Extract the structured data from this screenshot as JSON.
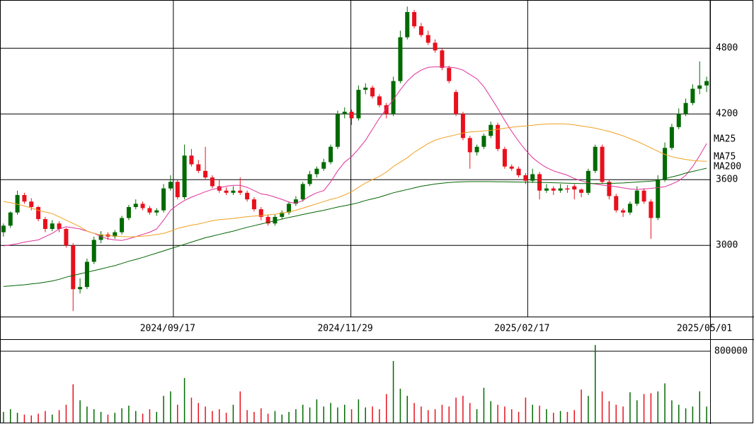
{
  "chart_data": {
    "type": "candlestick",
    "up_color": "#006a00",
    "down_color": "#e8101c",
    "grid": true,
    "ylim": [
      2350,
      5240
    ],
    "yticks": [
      3000,
      3600,
      4200,
      4800
    ],
    "xticks": [
      {
        "value": 24.4,
        "label": "2024/09/17"
      },
      {
        "value": 49.9,
        "label": "2024/11/29"
      },
      {
        "value": 75.3,
        "label": "2025/02/17"
      },
      {
        "value": 101.5,
        "label": "2025/05/01"
      }
    ],
    "ohlc": [
      [
        3120,
        3200,
        3080,
        3180
      ],
      [
        3180,
        3310,
        3160,
        3300
      ],
      [
        3300,
        3500,
        3280,
        3460
      ],
      [
        3460,
        3480,
        3380,
        3400
      ],
      [
        3400,
        3430,
        3320,
        3350
      ],
      [
        3350,
        3360,
        3220,
        3240
      ],
      [
        3240,
        3260,
        3120,
        3150
      ],
      [
        3150,
        3230,
        3130,
        3200
      ],
      [
        3200,
        3220,
        3120,
        3150
      ],
      [
        3150,
        3160,
        2980,
        3000
      ],
      [
        3000,
        3020,
        2400,
        2600
      ],
      [
        2600,
        2700,
        2560,
        2620
      ],
      [
        2620,
        2880,
        2600,
        2850
      ],
      [
        2850,
        3080,
        2830,
        3050
      ],
      [
        3050,
        3130,
        3020,
        3100
      ],
      [
        3100,
        3120,
        3050,
        3080
      ],
      [
        3080,
        3140,
        3060,
        3120
      ],
      [
        3120,
        3270,
        3100,
        3250
      ],
      [
        3250,
        3370,
        3230,
        3350
      ],
      [
        3350,
        3420,
        3330,
        3380
      ],
      [
        3380,
        3400,
        3320,
        3340
      ],
      [
        3340,
        3360,
        3280,
        3300
      ],
      [
        3300,
        3340,
        3270,
        3320
      ],
      [
        3320,
        3560,
        3300,
        3520
      ],
      [
        3520,
        3640,
        3500,
        3580
      ],
      [
        3580,
        3600,
        3420,
        3440
      ],
      [
        3440,
        3920,
        3420,
        3820
      ],
      [
        3820,
        3880,
        3720,
        3740
      ],
      [
        3740,
        3780,
        3660,
        3680
      ],
      [
        3680,
        3900,
        3600,
        3620
      ],
      [
        3620,
        3640,
        3520,
        3540
      ],
      [
        3540,
        3600,
        3480,
        3500
      ],
      [
        3500,
        3530,
        3460,
        3480
      ],
      [
        3480,
        3540,
        3460,
        3500
      ],
      [
        3500,
        3620,
        3460,
        3480
      ],
      [
        3480,
        3500,
        3400,
        3420
      ],
      [
        3420,
        3440,
        3310,
        3330
      ],
      [
        3330,
        3350,
        3230,
        3260
      ],
      [
        3260,
        3280,
        3180,
        3200
      ],
      [
        3200,
        3280,
        3180,
        3260
      ],
      [
        3260,
        3320,
        3240,
        3300
      ],
      [
        3300,
        3400,
        3280,
        3380
      ],
      [
        3380,
        3450,
        3360,
        3420
      ],
      [
        3420,
        3580,
        3400,
        3560
      ],
      [
        3560,
        3680,
        3540,
        3650
      ],
      [
        3650,
        3720,
        3620,
        3700
      ],
      [
        3700,
        3790,
        3680,
        3760
      ],
      [
        3760,
        3920,
        3740,
        3900
      ],
      [
        3900,
        4230,
        3880,
        4200
      ],
      [
        4200,
        4260,
        4160,
        4220
      ],
      [
        4220,
        4240,
        4100,
        4160
      ],
      [
        4160,
        4460,
        4140,
        4420
      ],
      [
        4420,
        4480,
        4380,
        4440
      ],
      [
        4440,
        4460,
        4340,
        4360
      ],
      [
        4360,
        4380,
        4260,
        4280
      ],
      [
        4280,
        4300,
        4160,
        4200
      ],
      [
        4200,
        4540,
        4180,
        4500
      ],
      [
        4500,
        4960,
        4480,
        4900
      ],
      [
        4900,
        5180,
        4880,
        5130
      ],
      [
        5130,
        5150,
        4980,
        5000
      ],
      [
        5000,
        5030,
        4900,
        4920
      ],
      [
        4920,
        4960,
        4830,
        4850
      ],
      [
        4850,
        4880,
        4760,
        4780
      ],
      [
        4780,
        4800,
        4600,
        4620
      ],
      [
        4620,
        4640,
        4480,
        4500
      ],
      [
        4400,
        4420,
        4180,
        4200
      ],
      [
        4200,
        4220,
        3960,
        3980
      ],
      [
        3980,
        4000,
        3700,
        3850
      ],
      [
        3850,
        3920,
        3820,
        3900
      ],
      [
        3900,
        4020,
        3880,
        4000
      ],
      [
        4000,
        4130,
        3980,
        4100
      ],
      [
        4100,
        4120,
        3860,
        3880
      ],
      [
        3880,
        3900,
        3700,
        3720
      ],
      [
        3720,
        3740,
        3680,
        3700
      ],
      [
        3700,
        3720,
        3620,
        3640
      ],
      [
        3640,
        3660,
        3560,
        3590
      ],
      [
        3590,
        3700,
        3570,
        3650
      ],
      [
        3650,
        3670,
        3420,
        3500
      ],
      [
        3500,
        3560,
        3480,
        3520
      ],
      [
        3520,
        3540,
        3460,
        3500
      ],
      [
        3500,
        3560,
        3480,
        3520
      ],
      [
        3520,
        3550,
        3480,
        3510
      ],
      [
        3540,
        3560,
        3420,
        3510
      ],
      [
        3510,
        3520,
        3440,
        3480
      ],
      [
        3480,
        3700,
        3460,
        3680
      ],
      [
        3680,
        3920,
        3660,
        3900
      ],
      [
        3900,
        3920,
        3560,
        3580
      ],
      [
        3580,
        3600,
        3420,
        3450
      ],
      [
        3450,
        3470,
        3300,
        3320
      ],
      [
        3320,
        3340,
        3260,
        3300
      ],
      [
        3300,
        3400,
        3280,
        3380
      ],
      [
        3380,
        3540,
        3360,
        3500
      ],
      [
        3500,
        3520,
        3380,
        3400
      ],
      [
        3400,
        3420,
        3060,
        3250
      ],
      [
        3250,
        3640,
        3230,
        3600
      ],
      [
        3600,
        3940,
        3580,
        3890
      ],
      [
        3890,
        4110,
        3870,
        4080
      ],
      [
        4080,
        4250,
        4060,
        4200
      ],
      [
        4200,
        4340,
        4180,
        4300
      ],
      [
        4300,
        4470,
        4280,
        4430
      ],
      [
        4430,
        4680,
        4380,
        4460
      ],
      [
        4460,
        4540,
        4400,
        4500
      ]
    ],
    "series": [
      {
        "name": "MA25",
        "color": "#e0309a",
        "values": [
          2995,
          3005,
          3015,
          3030,
          3040,
          3050,
          3080,
          3110,
          3150,
          3170,
          3160,
          3150,
          3130,
          3110,
          3080,
          3060,
          3050,
          3045,
          3060,
          3080,
          3100,
          3120,
          3150,
          3230,
          3320,
          3370,
          3410,
          3440,
          3465,
          3490,
          3510,
          3525,
          3540,
          3548,
          3548,
          3530,
          3500,
          3470,
          3460,
          3440,
          3420,
          3395,
          3385,
          3410,
          3450,
          3480,
          3500,
          3580,
          3680,
          3760,
          3810,
          3880,
          3960,
          4060,
          4160,
          4250,
          4330,
          4420,
          4500,
          4560,
          4600,
          4625,
          4630,
          4630,
          4628,
          4620,
          4600,
          4560,
          4520,
          4450,
          4350,
          4250,
          4140,
          4040,
          3950,
          3870,
          3800,
          3750,
          3710,
          3680,
          3660,
          3640,
          3610,
          3590,
          3570,
          3560,
          3550,
          3545,
          3535,
          3525,
          3515,
          3510,
          3515,
          3520,
          3528,
          3535,
          3560,
          3590,
          3640,
          3720,
          3820,
          3930
        ]
      },
      {
        "name": "MA75",
        "color": "#f0a020",
        "values": [
          3400,
          3390,
          3375,
          3360,
          3340,
          3320,
          3305,
          3290,
          3260,
          3230,
          3200,
          3170,
          3130,
          3110,
          3095,
          3090,
          3085,
          3080,
          3078,
          3080,
          3085,
          3090,
          3100,
          3110,
          3130,
          3155,
          3170,
          3185,
          3195,
          3210,
          3225,
          3235,
          3240,
          3245,
          3255,
          3262,
          3268,
          3272,
          3278,
          3285,
          3295,
          3305,
          3320,
          3340,
          3360,
          3380,
          3400,
          3420,
          3435,
          3460,
          3490,
          3530,
          3570,
          3600,
          3630,
          3670,
          3720,
          3760,
          3800,
          3850,
          3890,
          3930,
          3960,
          3980,
          3995,
          4010,
          4025,
          4035,
          4040,
          4045,
          4050,
          4060,
          4070,
          4078,
          4085,
          4090,
          4097,
          4104,
          4108,
          4110,
          4110,
          4108,
          4100,
          4090,
          4080,
          4070,
          4055,
          4040,
          4020,
          4000,
          3975,
          3950,
          3920,
          3890,
          3860,
          3830,
          3810,
          3795,
          3785,
          3775,
          3770,
          3768
        ]
      },
      {
        "name": "MA200",
        "color": "#006400",
        "values": [
          2625,
          2630,
          2635,
          2640,
          2648,
          2655,
          2665,
          2675,
          2690,
          2710,
          2725,
          2740,
          2755,
          2770,
          2785,
          2800,
          2815,
          2835,
          2855,
          2872,
          2890,
          2910,
          2930,
          2950,
          2970,
          2990,
          3010,
          3030,
          3050,
          3070,
          3085,
          3100,
          3115,
          3130,
          3148,
          3165,
          3180,
          3195,
          3210,
          3225,
          3240,
          3255,
          3268,
          3282,
          3295,
          3308,
          3320,
          3335,
          3350,
          3362,
          3375,
          3390,
          3410,
          3425,
          3440,
          3460,
          3480,
          3495,
          3510,
          3525,
          3540,
          3550,
          3560,
          3568,
          3574,
          3578,
          3580,
          3582,
          3582,
          3582,
          3582,
          3581,
          3580,
          3579,
          3578,
          3577,
          3576,
          3575,
          3574,
          3572,
          3570,
          3568,
          3566,
          3565,
          3564,
          3564,
          3565,
          3566,
          3568,
          3570,
          3574,
          3578,
          3582,
          3586,
          3592,
          3610,
          3625,
          3640,
          3660,
          3675,
          3690,
          3705
        ]
      }
    ],
    "volume": {
      "ylim": [
        0,
        935000
      ],
      "yticks": [
        800000
      ],
      "values": [
        120000,
        150000,
        110000,
        90000,
        80000,
        100000,
        130000,
        90000,
        140000,
        200000,
        430000,
        250000,
        180000,
        150000,
        120000,
        90000,
        110000,
        160000,
        190000,
        130000,
        100000,
        150000,
        120000,
        300000,
        350000,
        200000,
        500000,
        280000,
        220000,
        180000,
        130000,
        150000,
        110000,
        200000,
        350000,
        140000,
        120000,
        160000,
        100000,
        130000,
        90000,
        120000,
        150000,
        200000,
        170000,
        260000,
        180000,
        220000,
        170000,
        200000,
        150000,
        260000,
        170000,
        180000,
        150000,
        320000,
        690000,
        380000,
        300000,
        220000,
        180000,
        140000,
        150000,
        200000,
        180000,
        280000,
        300000,
        220000,
        150000,
        390000,
        240000,
        200000,
        180000,
        150000,
        120000,
        280000,
        200000,
        190000,
        150000,
        110000,
        130000,
        120000,
        140000,
        370000,
        300000,
        870000,
        350000,
        240000,
        200000,
        180000,
        340000,
        250000,
        320000,
        330000,
        350000,
        440000,
        250000,
        200000,
        160000,
        180000,
        350000,
        180000
      ]
    }
  }
}
